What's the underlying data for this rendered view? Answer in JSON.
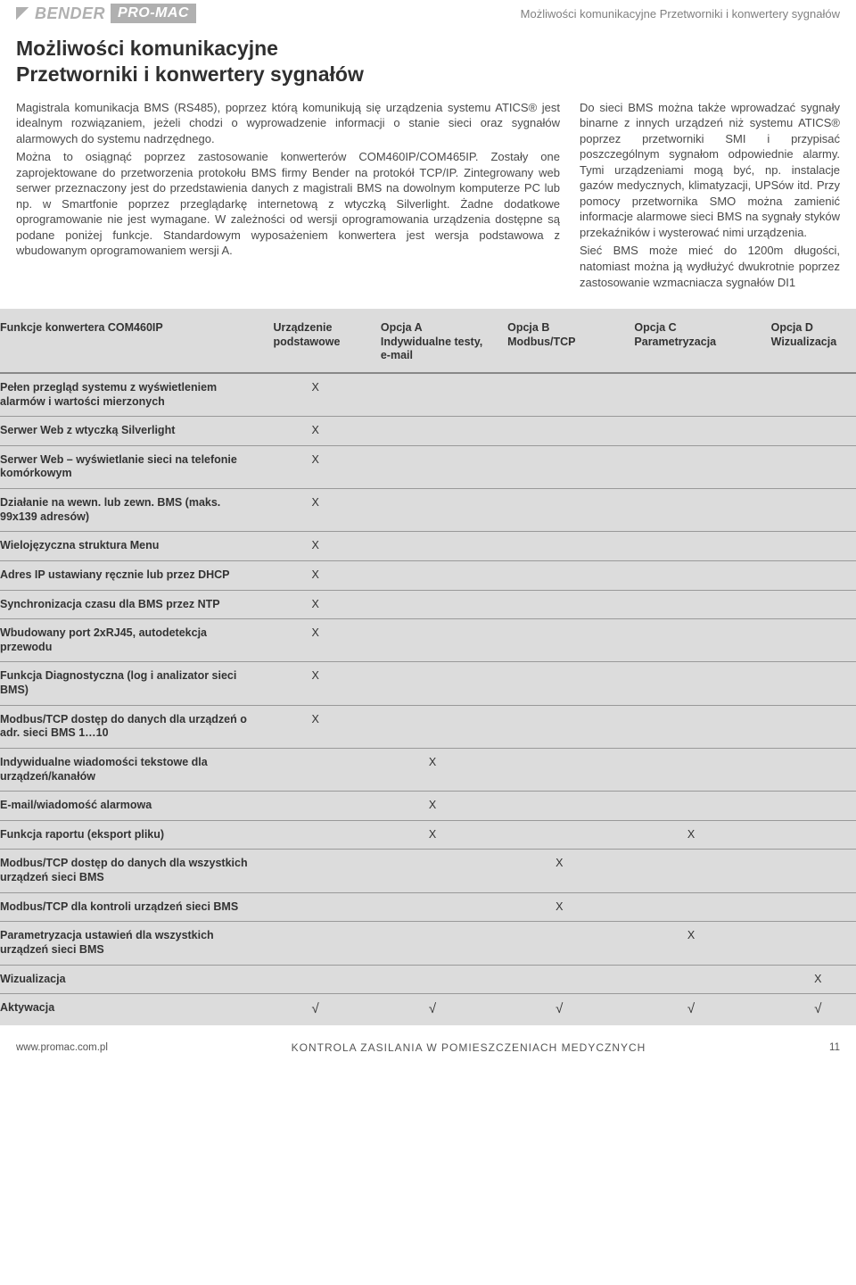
{
  "header": {
    "logo1": "BENDER",
    "logo2": "PRO-MAC",
    "breadcrumb": "Możliwości komunikacyjne  Przetworniki i konwertery sygnałów"
  },
  "title_line1": "Możliwości komunikacyjne",
  "title_line2": "Przetworniki i konwertery sygnałów",
  "left_paragraphs": [
    "Magistrala komunikacja BMS (RS485), poprzez którą komunikują się urządzenia systemu ATICS® jest idealnym rozwiązaniem, jeżeli chodzi o wyprowadzenie informacji o stanie sieci oraz sygnałów alarmowych do systemu nadrzędnego.",
    "Można to osiągnąć poprzez zastosowanie konwerterów COM460IP/COM465IP. Zostały one zaprojektowane do przetworzenia protokołu BMS firmy Bender na protokół TCP/IP. Zintegrowany web serwer przeznaczony jest do przedstawienia danych z magistrali BMS na dowolnym komputerze PC lub np. w Smartfonie poprzez przeglądarkę internetową z wtyczką Silverlight. Żadne dodatkowe oprogramowanie nie jest wymagane. W zależności od wersji oprogramowania urządzenia dostępne są podane poniżej funkcje. Standardowym wyposażeniem konwertera jest wersja podstawowa z wbudowanym oprogramowaniem wersji A."
  ],
  "right_paragraphs": [
    "Do sieci BMS można także wprowadzać sygnały binarne z innych urządzeń niż systemu ATICS® poprzez przetworniki SMI i przypisać poszczególnym sygnałom odpowiednie alarmy. Tymi urządzeniami mogą być, np. instalacje gazów medycznych, klimatyzacji, UPSów itd. Przy pomocy przetwornika SMO można zamienić informacje alarmowe sieci BMS na sygnały styków przekaźników i wysterować nimi urządzenia.",
    "Sieć BMS może mieć do 1200m długości, natomiast można ją wydłużyć dwukrotnie poprzez zastosowanie wzmacniacza sygnałów DI1"
  ],
  "table": {
    "background": "#dcdcdc",
    "border_color": "#999999",
    "header_border_color": "#888888",
    "columns": [
      {
        "label": "Funkcje konwertera COM460IP",
        "sub": ""
      },
      {
        "label": "Urządzenie",
        "sub": "podstawowe"
      },
      {
        "label": "Opcja A",
        "sub": "Indywidualne testy, e-mail"
      },
      {
        "label": "Opcja B",
        "sub": "Modbus/TCP"
      },
      {
        "label": "Opcja C",
        "sub": "Parametryzacja"
      },
      {
        "label": "Opcja D",
        "sub": "Wizualizacja"
      }
    ],
    "rows": [
      {
        "label": "Pełen przegląd systemu z wyświetleniem alarmów i wartości mierzonych",
        "marks": [
          "X",
          "",
          "",
          "",
          ""
        ]
      },
      {
        "label": "Serwer Web z wtyczką Silverlight",
        "marks": [
          "X",
          "",
          "",
          "",
          ""
        ]
      },
      {
        "label": "Serwer Web – wyświetlanie sieci na telefonie komórkowym",
        "marks": [
          "X",
          "",
          "",
          "",
          ""
        ]
      },
      {
        "label": "Działanie na wewn. lub zewn. BMS (maks. 99x139 adresów)",
        "marks": [
          "X",
          "",
          "",
          "",
          ""
        ]
      },
      {
        "label": "Wielojęzyczna struktura Menu",
        "marks": [
          "X",
          "",
          "",
          "",
          ""
        ]
      },
      {
        "label": "Adres IP ustawiany ręcznie lub przez DHCP",
        "marks": [
          "X",
          "",
          "",
          "",
          ""
        ]
      },
      {
        "label": "Synchronizacja czasu dla BMS przez NTP",
        "marks": [
          "X",
          "",
          "",
          "",
          ""
        ]
      },
      {
        "label": "Wbudowany port 2xRJ45, autodetekcja przewodu",
        "marks": [
          "X",
          "",
          "",
          "",
          ""
        ]
      },
      {
        "label": "Funkcja Diagnostyczna (log i analizator sieci BMS)",
        "marks": [
          "X",
          "",
          "",
          "",
          ""
        ]
      },
      {
        "label": "Modbus/TCP dostęp do danych dla urządzeń o adr. sieci BMS 1…10",
        "marks": [
          "X",
          "",
          "",
          "",
          ""
        ]
      },
      {
        "label": "Indywidualne wiadomości tekstowe dla urządzeń/kanałów",
        "marks": [
          "",
          "X",
          "",
          "",
          ""
        ]
      },
      {
        "label": "E-mail/wiadomość alarmowa",
        "marks": [
          "",
          "X",
          "",
          "",
          ""
        ]
      },
      {
        "label": "Funkcja raportu (eksport pliku)",
        "marks": [
          "",
          "X",
          "",
          "X",
          ""
        ]
      },
      {
        "label": "Modbus/TCP dostęp do danych dla wszystkich urządzeń sieci BMS",
        "marks": [
          "",
          "",
          "X",
          "",
          ""
        ]
      },
      {
        "label": "Modbus/TCP dla kontroli urządzeń sieci BMS",
        "marks": [
          "",
          "",
          "X",
          "",
          ""
        ]
      },
      {
        "label": "Parametryzacja ustawień dla wszystkich urządzeń sieci BMS",
        "marks": [
          "",
          "",
          "",
          "X",
          ""
        ]
      },
      {
        "label": "Wizualizacja",
        "marks": [
          "",
          "",
          "",
          "",
          "X"
        ]
      },
      {
        "label": "Aktywacja",
        "marks": [
          "√",
          "√",
          "√",
          "√",
          "√"
        ]
      }
    ]
  },
  "footer": {
    "left": "www.promac.com.pl",
    "center": "KONTROLA ZASILANIA W POMIESZCZENIACH MEDYCZNYCH",
    "page": "11"
  }
}
